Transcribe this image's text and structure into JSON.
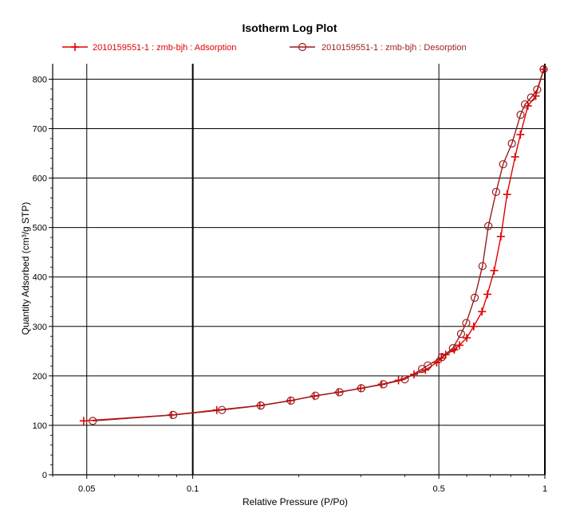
{
  "chart_data": {
    "type": "line",
    "title": "Isotherm Log Plot",
    "xlabel": "Relative Pressure (P/Po)",
    "ylabel": "Quantity Adsorbed (cm³/g STP)",
    "x_scale": "log",
    "xlim": [
      0.04,
      1.0
    ],
    "ylim": [
      0,
      820
    ],
    "x_ticks": [
      0.05,
      0.1,
      0.5,
      1
    ],
    "x_tick_labels": [
      "0.05",
      "0.1",
      "0.5",
      "1"
    ],
    "y_ticks": [
      0,
      100,
      200,
      300,
      400,
      500,
      600,
      700,
      800
    ],
    "y_tick_labels": [
      "0",
      "100",
      "200",
      "300",
      "400",
      "500",
      "600",
      "700",
      "800"
    ],
    "grid": true,
    "legend_position": "top",
    "series": [
      {
        "name": "2010159551-1 : zmb-bjh : Adsorption",
        "color": "#e00000",
        "marker": "plus",
        "points": [
          [
            0.049,
            109
          ],
          [
            0.087,
            121
          ],
          [
            0.117,
            131
          ],
          [
            0.155,
            140
          ],
          [
            0.189,
            150
          ],
          [
            0.221,
            159
          ],
          [
            0.259,
            167
          ],
          [
            0.3,
            175
          ],
          [
            0.344,
            183
          ],
          [
            0.384,
            191
          ],
          [
            0.425,
            203
          ],
          [
            0.458,
            212
          ],
          [
            0.493,
            227
          ],
          [
            0.508,
            236
          ],
          [
            0.523,
            243
          ],
          [
            0.553,
            253
          ],
          [
            0.572,
            262
          ],
          [
            0.6,
            277
          ],
          [
            0.628,
            300
          ],
          [
            0.663,
            330
          ],
          [
            0.687,
            365
          ],
          [
            0.718,
            413
          ],
          [
            0.75,
            482
          ],
          [
            0.781,
            567
          ],
          [
            0.823,
            643
          ],
          [
            0.852,
            688
          ],
          [
            0.895,
            746
          ],
          [
            0.942,
            766
          ],
          [
            0.992,
            820
          ]
        ]
      },
      {
        "name": "2010159551-1 : zmb-bjh : Desorption",
        "color": "#9b1c1c",
        "marker": "circle",
        "points": [
          [
            0.992,
            820
          ],
          [
            0.951,
            779
          ],
          [
            0.914,
            763
          ],
          [
            0.878,
            749
          ],
          [
            0.853,
            728
          ],
          [
            0.806,
            670
          ],
          [
            0.761,
            628
          ],
          [
            0.727,
            572
          ],
          [
            0.691,
            503
          ],
          [
            0.665,
            422
          ],
          [
            0.632,
            358
          ],
          [
            0.598,
            307
          ],
          [
            0.578,
            285
          ],
          [
            0.548,
            256
          ],
          [
            0.51,
            238
          ],
          [
            0.465,
            221
          ],
          [
            0.448,
            214
          ],
          [
            0.4,
            193
          ],
          [
            0.348,
            183
          ],
          [
            0.301,
            175
          ],
          [
            0.261,
            167
          ],
          [
            0.223,
            160
          ],
          [
            0.19,
            150
          ],
          [
            0.156,
            140
          ],
          [
            0.121,
            131
          ],
          [
            0.088,
            121
          ],
          [
            0.052,
            109
          ]
        ]
      }
    ]
  }
}
